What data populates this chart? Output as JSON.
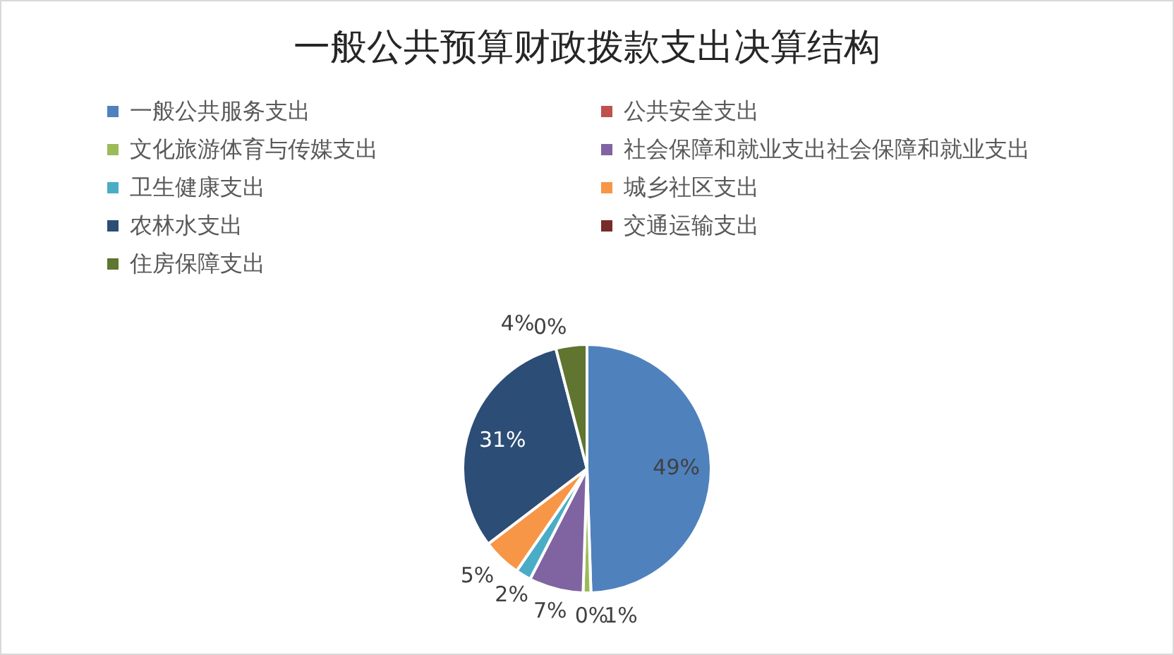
{
  "chart_data": {
    "type": "pie",
    "title": "一般公共预算财政拨款支出决算结构",
    "categories": [
      "一般公共服务支出",
      "公共安全支出",
      "文化旅游体育与传媒支出",
      "社会保障和就业支出社会保障和就业支出",
      "卫生健康支出",
      "城乡社区支出",
      "农林水支出",
      "交通运输支出",
      "住房保障支出"
    ],
    "values": [
      49,
      0,
      1,
      7,
      2,
      5,
      31,
      0,
      4
    ],
    "colors": [
      "#4f81bd",
      "#c0504d",
      "#9bbb59",
      "#8064a2",
      "#4bacc6",
      "#f79646",
      "#2c4d75",
      "#772c2a",
      "#5f7530"
    ],
    "value_labels": [
      "49%",
      "0%",
      "1%",
      "7%",
      "2%",
      "5%",
      "31%",
      "0%",
      "4%"
    ],
    "legend": "top"
  }
}
